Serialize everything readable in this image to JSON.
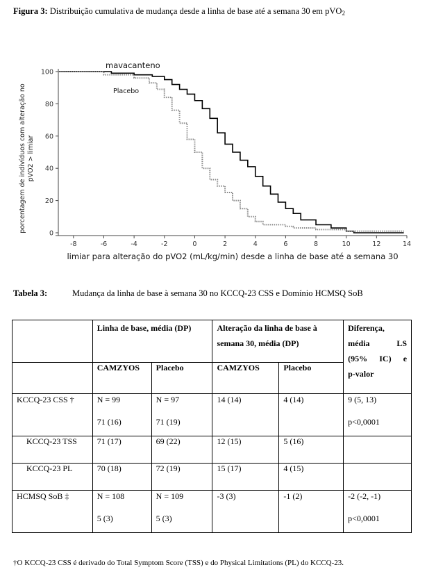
{
  "figure": {
    "label": "Figura 3:",
    "caption_text": "Distribuição cumulativa de mudança desde a linha de base até a semana 30 em pVO",
    "caption_sub": "2",
    "chart_data": {
      "type": "line",
      "ylabel_line1": "porcentagem de indivíduos com alteração no",
      "ylabel_line2": "pVO2 > limiar",
      "xlabel": "limiar para alteração do pVO2 (mL/kg/min) desde a linha de base até a semana 30",
      "xlim": [
        -9,
        14
      ],
      "ylim": [
        0,
        100
      ],
      "x_ticks": [
        "-8",
        "-6",
        "-4",
        "-2",
        "0",
        "2",
        "4",
        "6",
        "8",
        "10",
        "12",
        "14"
      ],
      "y_ticks": [
        "0",
        "20",
        "40",
        "60",
        "80",
        "100"
      ],
      "series": [
        {
          "name": "mavacanteno",
          "color": "#000000",
          "style": "solid",
          "points": [
            [
              -9,
              100
            ],
            [
              -5.5,
              99
            ],
            [
              -4,
              98
            ],
            [
              -2.8,
              97
            ],
            [
              -2,
              95
            ],
            [
              -1.5,
              92
            ],
            [
              -1,
              89
            ],
            [
              -0.5,
              86
            ],
            [
              0,
              82
            ],
            [
              0.5,
              77
            ],
            [
              1,
              71
            ],
            [
              1.5,
              62
            ],
            [
              2,
              55
            ],
            [
              2.5,
              50
            ],
            [
              3,
              45
            ],
            [
              3.5,
              41
            ],
            [
              4,
              35
            ],
            [
              4.5,
              29
            ],
            [
              5,
              24
            ],
            [
              5.5,
              19
            ],
            [
              6,
              15
            ],
            [
              6.5,
              12
            ],
            [
              7,
              8
            ],
            [
              8,
              5
            ],
            [
              9,
              3
            ],
            [
              10,
              1
            ],
            [
              10.5,
              0
            ],
            [
              13.8,
              0
            ]
          ]
        },
        {
          "name": "Placebo",
          "color": "#888888",
          "style": "dotted",
          "points": [
            [
              -9,
              100
            ],
            [
              -6,
              98
            ],
            [
              -4,
              96
            ],
            [
              -3,
              93
            ],
            [
              -2.5,
              89
            ],
            [
              -2,
              84
            ],
            [
              -1.5,
              76
            ],
            [
              -1,
              68
            ],
            [
              -0.5,
              58
            ],
            [
              0,
              50
            ],
            [
              0.5,
              40
            ],
            [
              1,
              33
            ],
            [
              1.5,
              29
            ],
            [
              2,
              25
            ],
            [
              2.5,
              20
            ],
            [
              3,
              15
            ],
            [
              3.5,
              10
            ],
            [
              4,
              7
            ],
            [
              4.5,
              5
            ],
            [
              5,
              5
            ],
            [
              6,
              4
            ],
            [
              6.5,
              3
            ],
            [
              8,
              2
            ],
            [
              10,
              1
            ],
            [
              13.8,
              1
            ]
          ]
        }
      ]
    }
  },
  "table_caption": {
    "label": "Tabela 3:",
    "text": "Mudança da linha de base à semana 30 no KCCQ-23 CSS e Domínio HCMSQ SoB"
  },
  "table": {
    "header1": {
      "baseline": "Linha de base, média (DP)",
      "change_line1": "Alteração da linha de base à",
      "change_line2": "semana 30, média (DP)",
      "diff_line1": "Diferença,",
      "diff_line2a": "média",
      "diff_line2b": "LS",
      "diff_line3a": "(95%",
      "diff_line3b": "IC)",
      "diff_line3c": "e",
      "diff_line4": "p-valor"
    },
    "header2": [
      "CAMZYOS",
      "Placebo",
      "CAMZYOS",
      "Placebo"
    ],
    "rows": [
      {
        "label": "KCCQ-23 CSS †",
        "c1a": "N = 99",
        "c1b": "71 (16)",
        "c2a": "N = 97",
        "c2b": "71 (19)",
        "c3": "14 (14)",
        "c4": "4 (14)",
        "c5a": "9 (5, 13)",
        "c5b": "p<0,0001"
      },
      {
        "label": "KCCQ-23 TSS",
        "c1a": "71 (17)",
        "c2a": "69 (22)",
        "c3": "12 (15)",
        "c4": "5 (16)"
      },
      {
        "label": "KCCQ-23 PL",
        "c1a": "70 (18)",
        "c2a": "72 (19)",
        "c3": "15 (17)",
        "c4": "4 (15)"
      },
      {
        "label": "HCMSQ SoB ‡",
        "c1a": "N = 108",
        "c1b": "5 (3)",
        "c2a": "N = 109",
        "c2b": "5 (3)",
        "c3": "-3 (3)",
        "c4": "-1 (2)",
        "c5a": "-2 (-2, -1)",
        "c5b": "p<0,0001"
      }
    ]
  },
  "footnote": "†O KCCQ-23 CSS é derivado do Total Symptom Score (TSS) e do Physical Limitations (PL) do KCCQ-23."
}
